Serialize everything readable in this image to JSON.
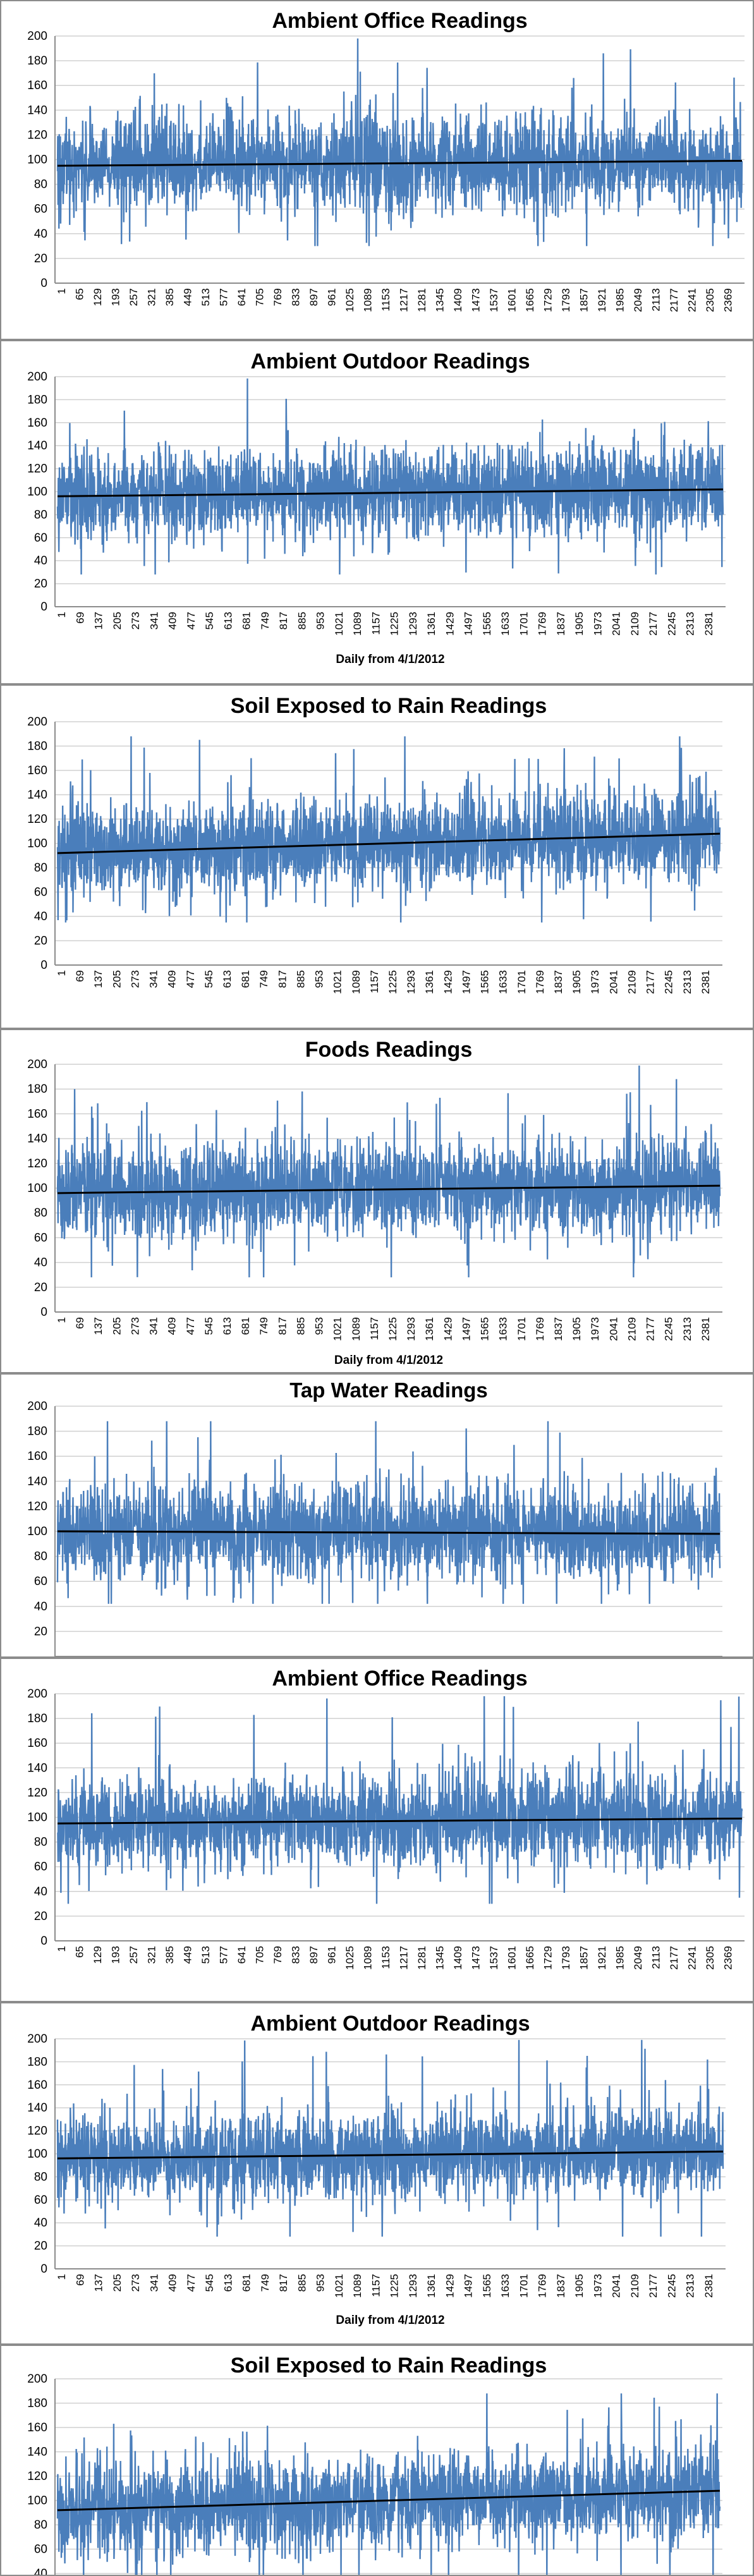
{
  "chart_data": [
    {
      "type": "line",
      "title": "Ambient Office Readings",
      "xlabel": "",
      "ylabel": "",
      "ylim": [
        0,
        200
      ],
      "yticks": [
        0,
        20,
        40,
        60,
        80,
        100,
        120,
        140,
        160,
        180,
        200
      ],
      "x_tick_labels": [
        "1",
        "65",
        "129",
        "193",
        "257",
        "321",
        "385",
        "449",
        "513",
        "577",
        "641",
        "705",
        "769",
        "833",
        "897",
        "961",
        "1025",
        "1089",
        "1153",
        "1217",
        "1281",
        "1345",
        "1409",
        "1473",
        "1537",
        "1601",
        "1665",
        "1729",
        "1793",
        "1857",
        "1921",
        "1985",
        "2049",
        "2113",
        "2177",
        "2241",
        "2305",
        "2369"
      ],
      "n_points": 2420,
      "series_mean": 97,
      "series_min": 30,
      "series_max": 198,
      "trend_line": {
        "start": 95,
        "end": 99
      },
      "grid": true,
      "legend": "none",
      "series_color": "#4a7ebb",
      "trend_color": "#000000"
    },
    {
      "type": "line",
      "title": "Ambient Outdoor Readings",
      "xlabel": "Daily from 4/1/2012",
      "ylabel": "",
      "ylim": [
        0,
        200
      ],
      "yticks": [
        0,
        20,
        40,
        60,
        80,
        100,
        120,
        140,
        160,
        180,
        200
      ],
      "x_tick_labels": [
        "1",
        "69",
        "137",
        "205",
        "273",
        "341",
        "409",
        "477",
        "545",
        "613",
        "681",
        "749",
        "817",
        "885",
        "953",
        "1021",
        "1089",
        "1157",
        "1225",
        "1293",
        "1361",
        "1429",
        "1497",
        "1565",
        "1633",
        "1701",
        "1769",
        "1837",
        "1905",
        "1973",
        "2041",
        "2109",
        "2177",
        "2245",
        "2313",
        "2381"
      ],
      "n_points": 2440,
      "series_mean": 100,
      "series_min": 28,
      "series_max": 199,
      "trend_line": {
        "start": 96,
        "end": 102
      },
      "grid": true,
      "legend": "none",
      "series_color": "#4a7ebb",
      "trend_color": "#000000"
    },
    {
      "type": "line",
      "title": "Soil Exposed to Rain Readings",
      "xlabel": "",
      "ylabel": "",
      "ylim": [
        0,
        200
      ],
      "yticks": [
        0,
        20,
        40,
        60,
        80,
        100,
        120,
        140,
        160,
        180,
        200
      ],
      "x_tick_labels": [
        "1",
        "69",
        "137",
        "205",
        "273",
        "341",
        "409",
        "477",
        "545",
        "613",
        "681",
        "749",
        "817",
        "885",
        "953",
        "1021",
        "1089",
        "1157",
        "1225",
        "1293",
        "1361",
        "1429",
        "1497",
        "1565",
        "1633",
        "1701",
        "1769",
        "1837",
        "1905",
        "1973",
        "2041",
        "2109",
        "2177",
        "2245",
        "2313",
        "2381"
      ],
      "n_points": 2440,
      "series_mean": 100,
      "series_min": 35,
      "series_max": 188,
      "trend_line": {
        "start": 92,
        "end": 108
      },
      "grid": true,
      "legend": "none",
      "series_color": "#4a7ebb",
      "trend_color": "#000000"
    },
    {
      "type": "line",
      "title": "Foods Readings",
      "xlabel": "Daily from 4/1/2012",
      "ylabel": "",
      "ylim": [
        0,
        200
      ],
      "yticks": [
        0,
        20,
        40,
        60,
        80,
        100,
        120,
        140,
        160,
        180,
        200
      ],
      "x_tick_labels": [
        "1",
        "69",
        "137",
        "205",
        "273",
        "341",
        "409",
        "477",
        "545",
        "613",
        "681",
        "749",
        "817",
        "885",
        "953",
        "1021",
        "1089",
        "1157",
        "1225",
        "1293",
        "1361",
        "1429",
        "1497",
        "1565",
        "1633",
        "1701",
        "1769",
        "1837",
        "1905",
        "1973",
        "2041",
        "2109",
        "2177",
        "2245",
        "2313",
        "2381"
      ],
      "n_points": 2440,
      "series_mean": 99,
      "series_min": 28,
      "series_max": 199,
      "trend_line": {
        "start": 96,
        "end": 102
      },
      "grid": true,
      "legend": "none",
      "series_color": "#4a7ebb",
      "trend_color": "#000000"
    },
    {
      "type": "line",
      "title": "Tap Water Readings",
      "xlabel": "",
      "ylabel": "",
      "ylim": [
        0,
        200
      ],
      "yticks": [
        20,
        40,
        60,
        80,
        100,
        120,
        140,
        160,
        180,
        200
      ],
      "x_tick_labels": [],
      "n_points": 2440,
      "series_mean": 99,
      "series_min": 42,
      "series_max": 188,
      "trend_line": {
        "start": 100,
        "end": 98
      },
      "grid": true,
      "legend": "none",
      "series_color": "#4a7ebb",
      "trend_color": "#000000"
    },
    {
      "type": "line",
      "title": "Ambient Office Readings",
      "xlabel": "",
      "ylabel": "",
      "ylim": [
        0,
        200
      ],
      "yticks": [
        0,
        20,
        40,
        60,
        80,
        100,
        120,
        140,
        160,
        180,
        200
      ],
      "x_tick_labels": [
        "1",
        "65",
        "129",
        "193",
        "257",
        "321",
        "385",
        "449",
        "513",
        "577",
        "641",
        "705",
        "769",
        "833",
        "897",
        "961",
        "1025",
        "1089",
        "1153",
        "1217",
        "1281",
        "1345",
        "1409",
        "1473",
        "1537",
        "1601",
        "1665",
        "1729",
        "1793",
        "1857",
        "1921",
        "1985",
        "2049",
        "2113",
        "2177",
        "2241",
        "2305",
        "2369"
      ],
      "n_points": 2420,
      "series_mean": 97,
      "series_min": 30,
      "series_max": 198,
      "trend_line": {
        "start": 95,
        "end": 99
      },
      "grid": true,
      "legend": "none",
      "series_color": "#4a7ebb",
      "trend_color": "#000000"
    },
    {
      "type": "line",
      "title": "Ambient Outdoor Readings",
      "xlabel": "Daily from 4/1/2012",
      "ylabel": "",
      "ylim": [
        0,
        200
      ],
      "yticks": [
        0,
        20,
        40,
        60,
        80,
        100,
        120,
        140,
        160,
        180,
        200
      ],
      "x_tick_labels": [
        "1",
        "69",
        "137",
        "205",
        "273",
        "341",
        "409",
        "477",
        "545",
        "613",
        "681",
        "749",
        "817",
        "885",
        "953",
        "1021",
        "1089",
        "1157",
        "1225",
        "1293",
        "1361",
        "1429",
        "1497",
        "1565",
        "1633",
        "1701",
        "1769",
        "1837",
        "1905",
        "1973",
        "2041",
        "2109",
        "2177",
        "2245",
        "2313",
        "2381"
      ],
      "n_points": 2440,
      "series_mean": 100,
      "series_min": 28,
      "series_max": 199,
      "trend_line": {
        "start": 96,
        "end": 102
      },
      "grid": true,
      "legend": "none",
      "series_color": "#4a7ebb",
      "trend_color": "#000000"
    },
    {
      "type": "line",
      "title": "Soil Exposed to Rain Readings",
      "xlabel": "",
      "ylabel": "",
      "ylim": [
        0,
        200
      ],
      "yticks": [
        40,
        60,
        80,
        100,
        120,
        140,
        160,
        180,
        200
      ],
      "x_tick_labels": [],
      "n_points": 2440,
      "series_mean": 100,
      "series_min": 35,
      "series_max": 188,
      "trend_line": {
        "start": 92,
        "end": 108
      },
      "grid": true,
      "legend": "none",
      "series_color": "#4a7ebb",
      "trend_color": "#000000"
    }
  ]
}
